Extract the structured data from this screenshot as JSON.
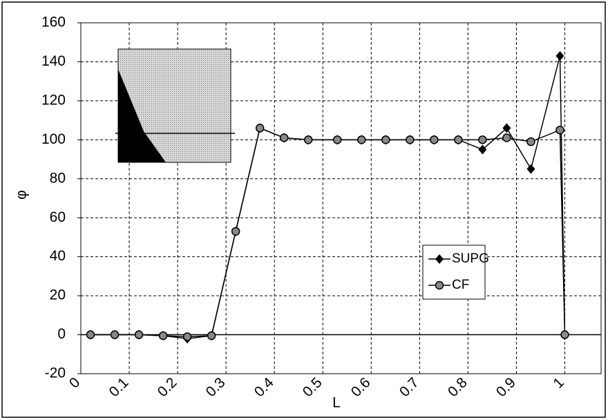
{
  "chart_data": {
    "type": "line",
    "x_label": "L",
    "y_label": "φ",
    "x": [
      0.02,
      0.07,
      0.12,
      0.17,
      0.22,
      0.27,
      0.32,
      0.37,
      0.42,
      0.47,
      0.53,
      0.58,
      0.63,
      0.68,
      0.73,
      0.78,
      0.83,
      0.88,
      0.93,
      0.99,
      1.0
    ],
    "series": [
      {
        "name": "SUPG",
        "color": "#000000",
        "marker": "diamond",
        "values": [
          0,
          0,
          0,
          -0.5,
          -2,
          -0.5,
          53,
          106,
          101,
          100,
          100,
          100,
          100,
          100,
          100,
          100,
          95,
          106,
          85,
          143,
          0
        ]
      },
      {
        "name": "CF",
        "color": "#000000",
        "marker": "circle",
        "values": [
          0,
          0,
          0,
          -0.5,
          -1,
          -0.5,
          53,
          106,
          101,
          100,
          100,
          100,
          100,
          100,
          100,
          100,
          100,
          101,
          99,
          105,
          0
        ]
      }
    ],
    "xlim": [
      0,
      1.075
    ],
    "xticks": [
      0,
      0.1,
      0.2,
      0.3,
      0.4,
      0.5,
      0.6,
      0.7,
      0.8,
      0.9,
      1
    ],
    "ylim": [
      -20,
      160
    ],
    "yticks": [
      -20,
      0,
      20,
      40,
      60,
      80,
      100,
      120,
      140,
      160
    ],
    "grid": true,
    "legend": "right"
  }
}
